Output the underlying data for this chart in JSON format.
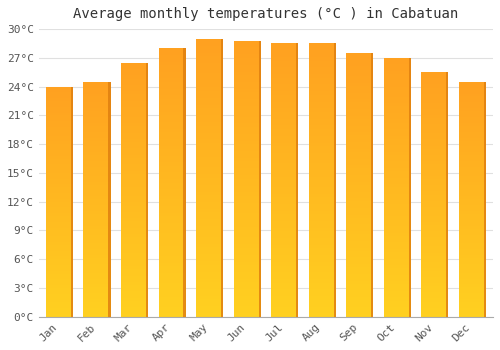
{
  "title": "Average monthly temperatures (°C ) in Cabatuan",
  "months": [
    "Jan",
    "Feb",
    "Mar",
    "Apr",
    "May",
    "Jun",
    "Jul",
    "Aug",
    "Sep",
    "Oct",
    "Nov",
    "Dec"
  ],
  "temperatures": [
    24.0,
    24.5,
    26.5,
    28.0,
    29.0,
    28.8,
    28.5,
    28.5,
    27.5,
    27.0,
    25.5,
    24.5
  ],
  "bar_color_bottom": "#FFD020",
  "bar_color_top": "#FFA020",
  "bar_edge_color": "#E08010",
  "ylim": [
    0,
    30
  ],
  "yticks": [
    0,
    3,
    6,
    9,
    12,
    15,
    18,
    21,
    24,
    27,
    30
  ],
  "ytick_labels": [
    "0°C",
    "3°C",
    "6°C",
    "9°C",
    "12°C",
    "15°C",
    "18°C",
    "21°C",
    "24°C",
    "27°C",
    "30°C"
  ],
  "background_color": "#ffffff",
  "grid_color": "#e0e0e0",
  "title_fontsize": 10,
  "tick_fontsize": 8,
  "bar_width": 0.72
}
